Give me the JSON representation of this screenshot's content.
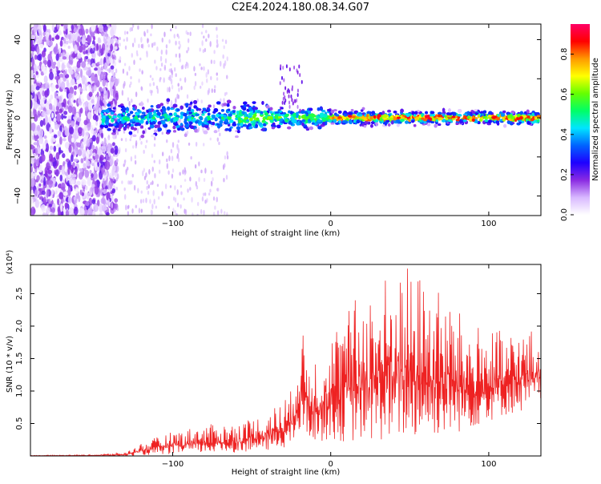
{
  "figure": {
    "title": "C2E4.2024.180.08.34.G07"
  },
  "chart_data": [
    {
      "type": "heatmap",
      "xlabel": "Height of straight line (km)",
      "ylabel": "Frequency (Hz)",
      "xlim": [
        -190,
        133
      ],
      "ylim": [
        -50,
        48
      ],
      "xticks": [
        -100,
        0,
        100
      ],
      "yticks": [
        -40,
        -20,
        0,
        20,
        40
      ],
      "colorbar": {
        "label": "Normalized spectral amplitude",
        "range": [
          0,
          0.95
        ],
        "ticks": [
          0.0,
          0.2,
          0.4,
          0.6,
          0.8
        ],
        "colormap": [
          "#ffffff",
          "#d8b8ff",
          "#8a2be2",
          "#1e00ff",
          "#0064ff",
          "#00e5ff",
          "#00ff66",
          "#66ff00",
          "#ffff00",
          "#ff9900",
          "#ff0000",
          "#ff0066"
        ]
      },
      "grid": false
    },
    {
      "type": "line",
      "xlabel": "Height of straight line (km)",
      "ylabel": "SNR (10 * v/v)",
      "yscale_note": "(x10⁴)",
      "xlim": [
        -190,
        133
      ],
      "ylim": [
        0,
        2.95
      ],
      "xticks": [
        -100,
        0,
        100
      ],
      "yticks": [
        0.5,
        1.0,
        1.5,
        2.0,
        2.5
      ],
      "series": [
        {
          "color": "#ee2222",
          "envelope_x": [
            -190,
            -150,
            -130,
            -120,
            -100,
            -80,
            -60,
            -40,
            -25,
            -20,
            -10,
            0,
            10,
            20,
            30,
            40,
            50,
            60,
            70,
            80,
            90,
            100,
            110,
            120,
            133
          ],
          "envelope_max": [
            0.01,
            0.02,
            0.05,
            0.2,
            0.38,
            0.48,
            0.52,
            0.68,
            1.02,
            1.97,
            1.6,
            1.95,
            2.25,
            2.58,
            2.75,
            2.9,
            2.95,
            2.75,
            2.55,
            2.25,
            2.05,
            2.0,
            1.9,
            1.98,
            1.95
          ],
          "envelope_min": [
            0,
            0,
            0,
            0,
            0.01,
            0.02,
            0.03,
            0.05,
            0.1,
            0.2,
            0.15,
            0.15,
            0.1,
            0.1,
            0.1,
            0.1,
            0.12,
            0.15,
            0.2,
            0.25,
            0.35,
            0.45,
            0.55,
            0.6,
            0.75
          ]
        }
      ],
      "grid": false
    }
  ]
}
